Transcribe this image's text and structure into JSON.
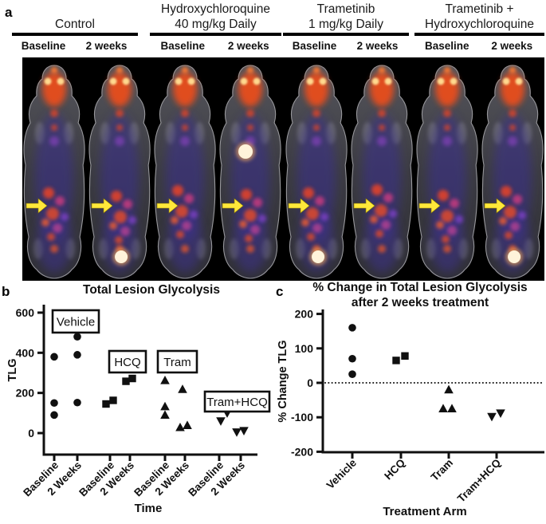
{
  "panel_a": {
    "label": "a",
    "groups": [
      {
        "title_lines": [
          "Control",
          ""
        ],
        "timepoints": [
          "Baseline",
          "2 weeks"
        ]
      },
      {
        "title_lines": [
          "Hydroxychloroquine",
          "40 mg/kg Daily"
        ],
        "timepoints": [
          "Baseline",
          "2 weeks"
        ]
      },
      {
        "title_lines": [
          "Trametinib",
          "1 mg/kg Daily"
        ],
        "timepoints": [
          "Baseline",
          "2 weeks"
        ]
      },
      {
        "title_lines": [
          "Trametinib +",
          "Hydroxychloroquine"
        ],
        "timepoints": [
          "Baseline",
          "2 weeks"
        ]
      }
    ],
    "scans": [
      {
        "group": "Control",
        "timepoint": "Baseline",
        "bright_spot": null
      },
      {
        "group": "Control",
        "timepoint": "2 weeks",
        "bright_spot": "bladder"
      },
      {
        "group": "Hydroxychloroquine 40 mg/kg Daily",
        "timepoint": "Baseline",
        "bright_spot": null
      },
      {
        "group": "Hydroxychloroquine 40 mg/kg Daily",
        "timepoint": "2 weeks",
        "bright_spot": "chest"
      },
      {
        "group": "Trametinib 1 mg/kg Daily",
        "timepoint": "Baseline",
        "bright_spot": "bladder"
      },
      {
        "group": "Trametinib 1 mg/kg Daily",
        "timepoint": "2 weeks",
        "bright_spot": null
      },
      {
        "group": "Trametinib + Hydroxychloroquine",
        "timepoint": "Baseline",
        "bright_spot": null
      },
      {
        "group": "Trametinib + Hydroxychloroquine",
        "timepoint": "2 weeks",
        "bright_spot": "bladder"
      }
    ],
    "colors": {
      "background": "#000000",
      "body_gray": "#47474d",
      "hot_orange": "#f05123",
      "warm_yellow": "#ffd08a",
      "cool_purple": "#3a2d96",
      "magenta": "#c03a7e",
      "arrow_yellow": "#ffe83a",
      "bright_white": "#fff3da"
    }
  },
  "panel_b": {
    "label": "b"
  },
  "panel_c": {
    "label": "c"
  },
  "chart_data": [
    {
      "type": "scatter",
      "panel": "b",
      "title": "Total Lesion Glycolysis",
      "xlabel": "Time",
      "ylabel": "TLG",
      "ylim": [
        0,
        600
      ],
      "yticks": [
        0,
        200,
        400,
        600
      ],
      "grid": false,
      "legend_position": "none",
      "categories": [
        "Baseline",
        "2 Weeks",
        "Baseline",
        "2 Weeks",
        "Baseline",
        "2 Weeks",
        "Baseline",
        "2 Weeks"
      ],
      "group_labels": [
        "Vehicle",
        "HCQ",
        "Tram",
        "Tram+HCQ"
      ],
      "series": [
        {
          "name": "Vehicle",
          "marker": "circle",
          "points": [
            {
              "x": 0,
              "dx": 0,
              "y": 380
            },
            {
              "x": 0,
              "dx": 0,
              "y": 150
            },
            {
              "x": 0,
              "dx": 0,
              "y": 90
            },
            {
              "x": 1,
              "dx": 0,
              "y": 480
            },
            {
              "x": 1,
              "dx": 0,
              "y": 390
            },
            {
              "x": 1,
              "dx": 0,
              "y": 152
            }
          ]
        },
        {
          "name": "HCQ",
          "marker": "square",
          "points": [
            {
              "x": 2,
              "dx": -5,
              "y": 145
            },
            {
              "x": 2,
              "dx": 4,
              "y": 163
            },
            {
              "x": 3,
              "dx": -5,
              "y": 258
            },
            {
              "x": 3,
              "dx": 3,
              "y": 272
            }
          ]
        },
        {
          "name": "Tram",
          "marker": "triangle-up",
          "points": [
            {
              "x": 4,
              "dx": 0,
              "y": 262
            },
            {
              "x": 4,
              "dx": 0,
              "y": 132
            },
            {
              "x": 4,
              "dx": 0,
              "y": 90
            },
            {
              "x": 5,
              "dx": -3,
              "y": 218
            },
            {
              "x": 5,
              "dx": -6,
              "y": 28
            },
            {
              "x": 5,
              "dx": 3,
              "y": 38
            }
          ]
        },
        {
          "name": "Tram+HCQ",
          "marker": "triangle-down",
          "points": [
            {
              "x": 6,
              "dx": 2,
              "y": 60
            },
            {
              "x": 6,
              "dx": 10,
              "y": 100
            },
            {
              "x": 7,
              "dx": -5,
              "y": 5
            },
            {
              "x": 7,
              "dx": 4,
              "y": 12
            }
          ]
        }
      ]
    },
    {
      "type": "scatter",
      "panel": "c",
      "title_lines": [
        "% Change in Total Lesion Glycolysis",
        "after 2 weeks treatment"
      ],
      "xlabel": "Treatment Arm",
      "ylabel": "% Change  TLG",
      "ylim": [
        -200,
        200
      ],
      "yticks": [
        200,
        100,
        0,
        -100,
        -200
      ],
      "grid": false,
      "zero_line_dotted": true,
      "legend_position": "none",
      "categories": [
        "Vehicle",
        "HCQ",
        "Tram",
        "Tram+HCQ"
      ],
      "series": [
        {
          "name": "Vehicle",
          "marker": "circle",
          "points": [
            {
              "x": 0,
              "dx": 0,
              "y": 160
            },
            {
              "x": 0,
              "dx": 0,
              "y": 70
            },
            {
              "x": 0,
              "dx": 0,
              "y": 25
            }
          ]
        },
        {
          "name": "HCQ",
          "marker": "square",
          "points": [
            {
              "x": 1,
              "dx": -6,
              "y": 65
            },
            {
              "x": 1,
              "dx": 5,
              "y": 78
            }
          ]
        },
        {
          "name": "Tram",
          "marker": "triangle-up",
          "points": [
            {
              "x": 2,
              "dx": 0,
              "y": -20
            },
            {
              "x": 2,
              "dx": -7,
              "y": -75
            },
            {
              "x": 2,
              "dx": 4,
              "y": -75
            }
          ]
        },
        {
          "name": "Tram+HCQ",
          "marker": "triangle-down",
          "points": [
            {
              "x": 3,
              "dx": -6,
              "y": -98
            },
            {
              "x": 3,
              "dx": 5,
              "y": -88
            }
          ]
        }
      ]
    }
  ]
}
